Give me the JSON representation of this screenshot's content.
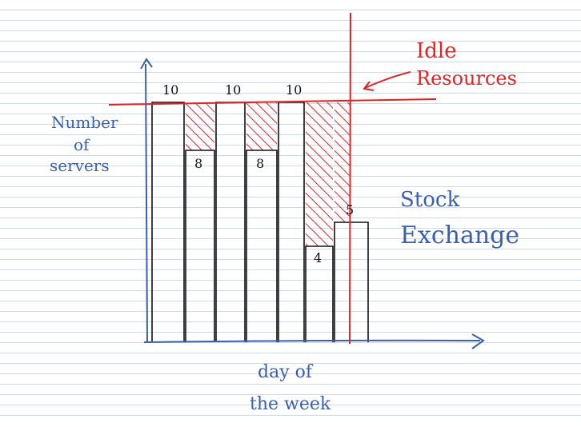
{
  "annotations": {
    "y_axis_label_line1": "Number",
    "y_axis_label_line2": "of",
    "y_axis_label_line3": "servers",
    "x_axis_label_line1": "day of",
    "x_axis_label_line2": "the week",
    "idle_label_line1": "Idle",
    "idle_label_line2": "Resources",
    "side_label_line1": "Stock",
    "side_label_line2": "Exchange"
  },
  "colors": {
    "axis_ink": "#3b5fb0",
    "bar_ink": "#111111",
    "idle_ink": "#e02323",
    "ruled_lines": "#c9dcef"
  },
  "chart_data": {
    "type": "bar",
    "capacity_line": 10,
    "values": [
      10,
      8,
      10,
      8,
      10,
      4,
      5
    ],
    "value_labels": [
      "10",
      "8",
      "10",
      "8",
      "10",
      "4",
      "5"
    ],
    "idle_shading": true
  }
}
